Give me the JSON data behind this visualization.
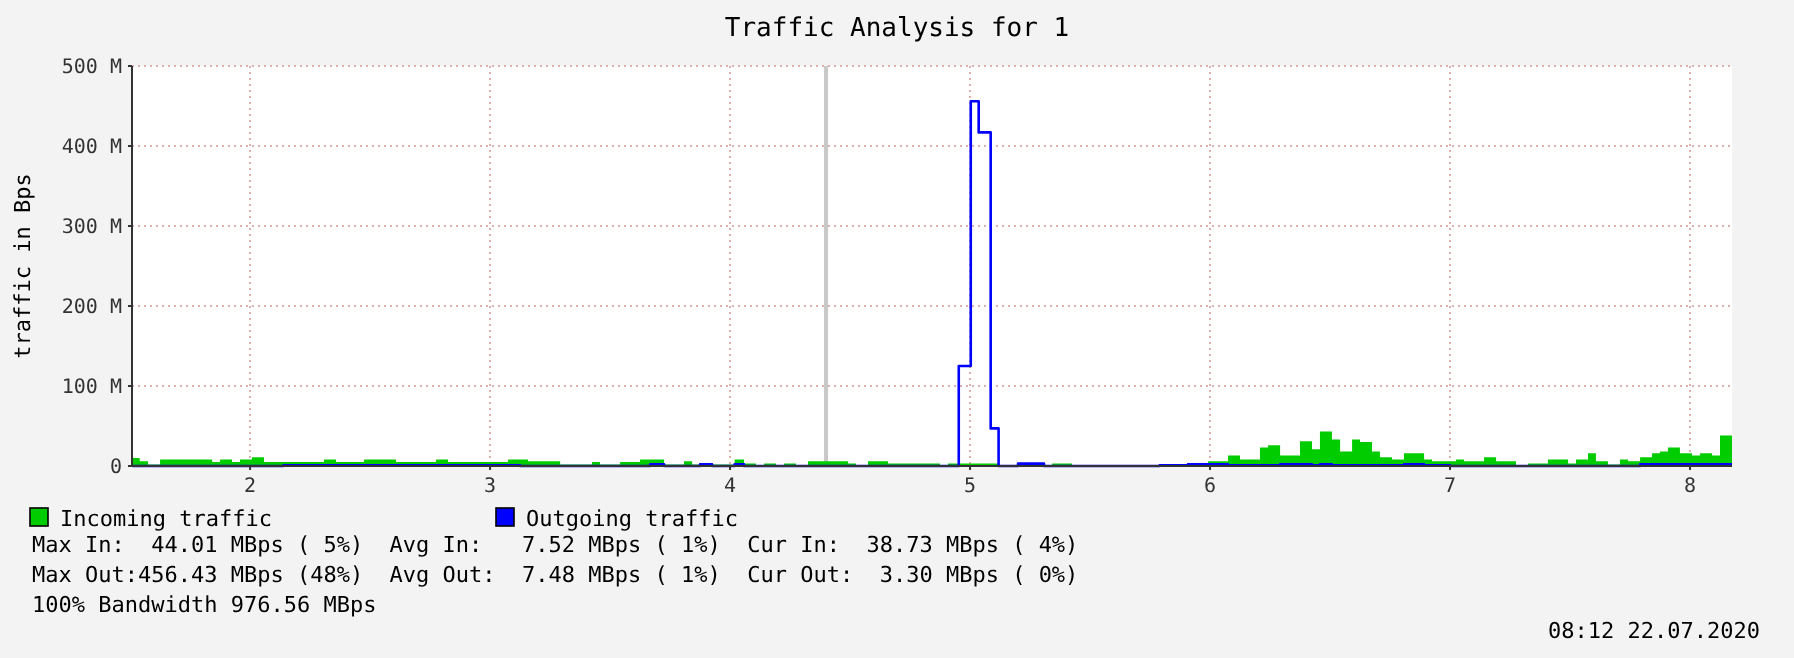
{
  "chart_data": {
    "type": "step",
    "title": "Traffic Analysis for 1",
    "ylabel": "traffic in Bps",
    "xlim": [
      1.508,
      8.175
    ],
    "xticks": [
      2,
      3,
      4,
      5,
      6,
      7,
      8
    ],
    "ylim": [
      0,
      500
    ],
    "yticks": [
      {
        "value": 0,
        "label": "0"
      },
      {
        "value": 100,
        "label": "100 M"
      },
      {
        "value": 200,
        "label": "200 M"
      },
      {
        "value": 300,
        "label": "300 M"
      },
      {
        "value": 400,
        "label": "400 M"
      },
      {
        "value": 500,
        "label": "500 M"
      }
    ],
    "grid": true,
    "legend": "bottom",
    "ref_lines": [
      {
        "axis": "x",
        "value": 4.4,
        "color": "#c8c8c8"
      }
    ],
    "series": [
      {
        "name": "Incoming traffic",
        "type": "area",
        "color": "#00cc00",
        "x": [
          1.51,
          1.54,
          1.575,
          1.625,
          1.842,
          1.875,
          1.925,
          1.958,
          2.008,
          2.058,
          2.308,
          2.358,
          2.475,
          2.608,
          2.775,
          2.825,
          3.075,
          3.158,
          3.292,
          3.425,
          3.458,
          3.542,
          3.625,
          3.725,
          3.808,
          3.842,
          3.875,
          4.019,
          4.058,
          4.108,
          4.142,
          4.192,
          4.225,
          4.275,
          4.325,
          4.492,
          4.525,
          4.575,
          4.658,
          4.875,
          4.908,
          5.119,
          5.342,
          5.425,
          5.908,
          5.992,
          6.075,
          6.125,
          6.208,
          6.242,
          6.292,
          6.375,
          6.425,
          6.458,
          6.508,
          6.542,
          6.592,
          6.625,
          6.675,
          6.708,
          6.758,
          6.808,
          6.892,
          6.925,
          7.025,
          7.058,
          7.142,
          7.192,
          7.275,
          7.325,
          7.408,
          7.492,
          7.525,
          7.575,
          7.608,
          7.658,
          7.708,
          7.742,
          7.792,
          7.842,
          7.875,
          7.908,
          7.958,
          8.008,
          8.042,
          8.092,
          8.125,
          8.175
        ],
        "values": [
          10,
          6,
          2,
          8,
          5,
          8,
          5,
          8,
          11,
          5,
          8,
          5,
          8,
          5,
          8,
          5,
          8,
          6,
          2,
          5,
          2,
          5,
          8,
          2,
          6,
          2,
          2,
          8,
          3,
          0,
          3,
          0,
          3,
          0,
          6,
          3,
          0,
          6,
          3,
          0,
          3,
          0,
          3,
          0,
          3,
          6,
          13,
          8,
          23,
          26,
          13,
          31,
          21,
          43,
          33,
          18,
          33,
          30,
          18,
          11,
          8,
          16,
          8,
          6,
          8,
          6,
          11,
          6,
          0,
          3,
          8,
          3,
          8,
          16,
          6,
          2,
          8,
          6,
          11,
          16,
          18,
          23,
          16,
          13,
          16,
          13,
          38,
          38
        ]
      },
      {
        "name": "Outgoing traffic",
        "color": "#0000ff",
        "x": [
          1.51,
          2.139,
          3.125,
          3.667,
          3.725,
          3.875,
          3.925,
          4.019,
          4.058,
          4.953,
          5.003,
          5.036,
          5.086,
          5.119,
          5.2,
          5.308,
          5.79,
          5.908,
          6.075,
          6.292,
          6.425,
          6.458,
          6.508,
          6.808,
          6.892,
          7.0,
          7.792,
          8.175
        ],
        "values": [
          0,
          1,
          0,
          2,
          0,
          2,
          0,
          2,
          0,
          125,
          456,
          417,
          47,
          0,
          3,
          0,
          1,
          2,
          1,
          2,
          1,
          2,
          1,
          2,
          1,
          0,
          2,
          2
        ]
      }
    ],
    "annotations": [
      "Max In:  44.01 MBps ( 5%)  Avg In:   7.52 MBps ( 1%)  Cur In:  38.73 MBps ( 4%)",
      "Max Out:456.43 MBps (48%)  Avg Out:  7.48 MBps ( 1%)  Cur Out:  3.30 MBps ( 0%)",
      "100% Bandwidth 976.56 MBps",
      "08:12 22.07.2020"
    ]
  }
}
